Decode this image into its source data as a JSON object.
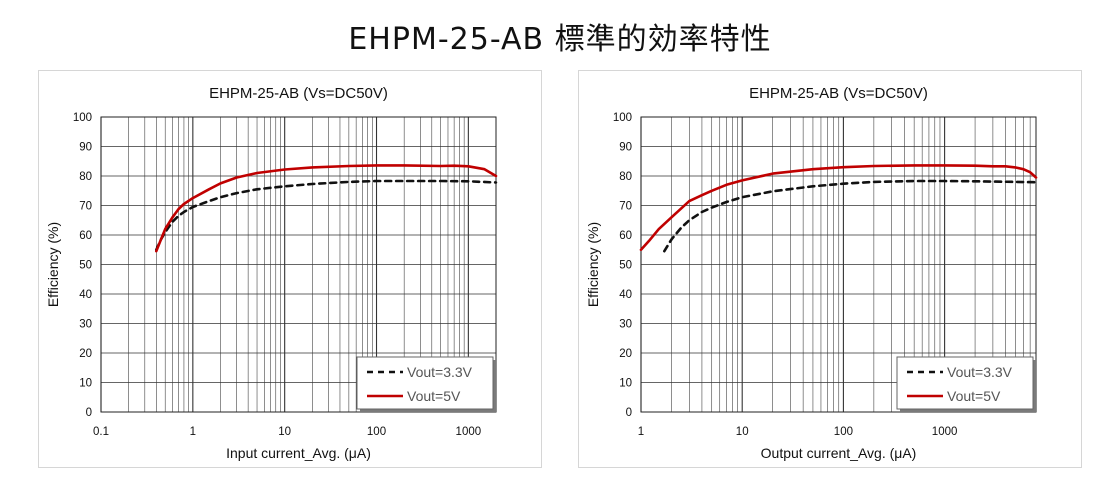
{
  "page": {
    "title": "EHPM-25-AB 標準的効率特性"
  },
  "colors": {
    "series_3v3": "#111111",
    "series_5v": "#c00000",
    "grid": "#333333"
  },
  "chart_data": [
    {
      "type": "line",
      "title": "EHPM-25-AB (Vs=DC50V)",
      "xlabel": "Input current_Avg. (μA)",
      "ylabel": "Efficiency (%)",
      "xscale": "log",
      "xlim": [
        0.1,
        2000
      ],
      "ylim": [
        0,
        100
      ],
      "xticks": [
        0.1,
        1,
        10,
        100,
        1000
      ],
      "xtick_labels": [
        "0.1",
        "1",
        "10",
        "100",
        "1000"
      ],
      "yticks": [
        0,
        10,
        20,
        30,
        40,
        50,
        60,
        70,
        80,
        90,
        100
      ],
      "grid": true,
      "legend": "bottom-right",
      "series": [
        {
          "name": "Vout=3.3V",
          "style": "dashed",
          "x": [
            0.4,
            0.45,
            0.5,
            0.6,
            0.7,
            0.8,
            1,
            1.5,
            2,
            3,
            5,
            10,
            20,
            50,
            100,
            200,
            500,
            1000,
            2000
          ],
          "y": [
            55,
            58.5,
            61,
            64.5,
            66.5,
            67.8,
            69.5,
            71.5,
            72.8,
            74.2,
            75.5,
            76.5,
            77.3,
            78,
            78.3,
            78.3,
            78.3,
            78.2,
            77.8
          ]
        },
        {
          "name": "Vout=5V",
          "style": "solid",
          "x": [
            0.4,
            0.45,
            0.5,
            0.6,
            0.7,
            0.8,
            1,
            1.5,
            2,
            3,
            5,
            10,
            20,
            50,
            100,
            200,
            500,
            700,
            1000,
            1500,
            2000
          ],
          "y": [
            54.5,
            58.5,
            62,
            66,
            68.8,
            70.5,
            72.5,
            75.5,
            77.5,
            79.5,
            81,
            82.2,
            82.9,
            83.4,
            83.6,
            83.6,
            83.4,
            83.5,
            83.3,
            82.3,
            80
          ]
        }
      ]
    },
    {
      "type": "line",
      "title": "EHPM-25-AB (Vs=DC50V)",
      "xlabel": "Output current_Avg. (μA)",
      "ylabel": "Efficiency (%)",
      "xscale": "log",
      "xlim": [
        1,
        8000
      ],
      "ylim": [
        0,
        100
      ],
      "xticks": [
        1,
        10,
        100,
        1000
      ],
      "xtick_labels": [
        "1",
        "10",
        "100",
        "1000"
      ],
      "yticks": [
        0,
        10,
        20,
        30,
        40,
        50,
        60,
        70,
        80,
        90,
        100
      ],
      "grid": true,
      "legend": "bottom-right",
      "series": [
        {
          "name": "Vout=3.3V",
          "style": "dashed",
          "x": [
            1.7,
            2,
            2.5,
            3,
            4,
            5,
            7,
            10,
            20,
            50,
            100,
            200,
            500,
            1000,
            2000,
            5000,
            8000
          ],
          "y": [
            54.5,
            58.5,
            62.5,
            65,
            67.8,
            69.3,
            71.2,
            72.8,
            74.8,
            76.5,
            77.4,
            78,
            78.3,
            78.3,
            78.2,
            78,
            77.9
          ]
        },
        {
          "name": "Vout=5V",
          "style": "solid",
          "x": [
            1,
            1.2,
            1.5,
            2,
            3,
            4,
            5,
            7,
            10,
            20,
            50,
            100,
            200,
            500,
            1000,
            2000,
            3000,
            4000,
            5000,
            6000,
            7000,
            8000
          ],
          "y": [
            55,
            58,
            62,
            66,
            71.5,
            73.5,
            75,
            77,
            78.5,
            80.8,
            82.3,
            83,
            83.4,
            83.6,
            83.6,
            83.5,
            83.3,
            83.3,
            82.9,
            82.3,
            81.3,
            79.5
          ]
        }
      ]
    }
  ]
}
